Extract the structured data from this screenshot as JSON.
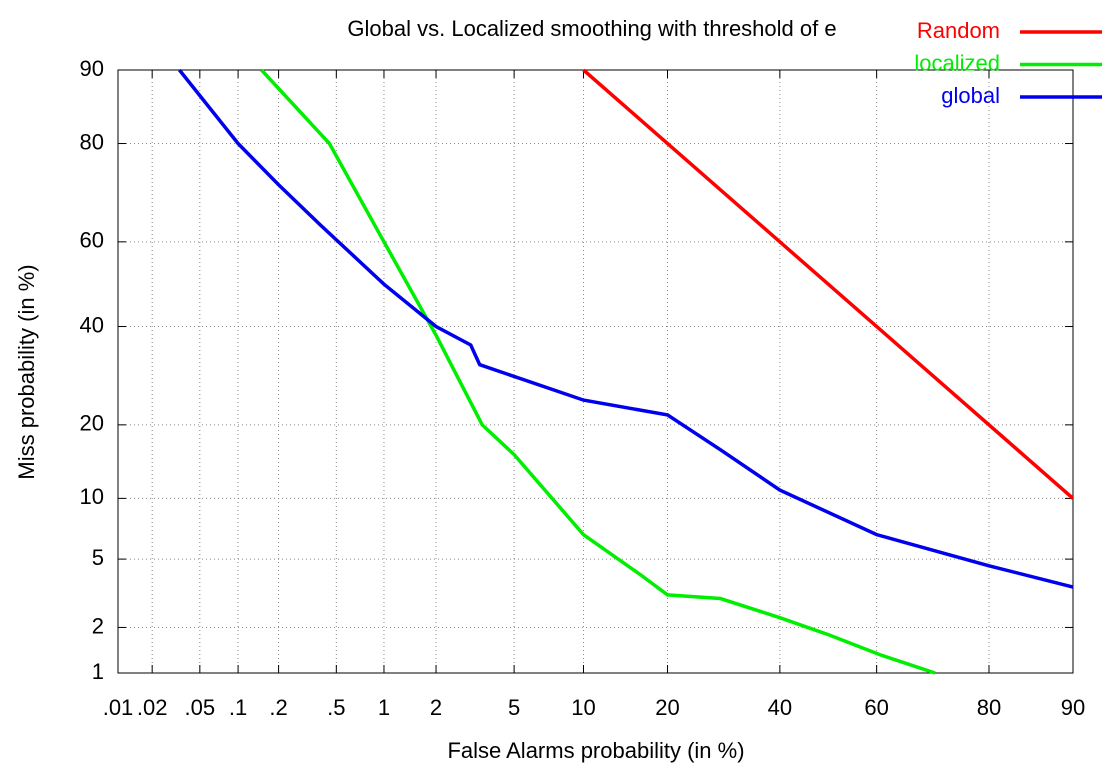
{
  "chart_data": {
    "type": "line",
    "title": "Global vs. Localized smoothing with threshold of e",
    "x_label": "False Alarms probability (in %)",
    "y_label": "Miss probability (in %)",
    "scale": "probit",
    "grid": true,
    "legend": "top-right",
    "xlim": [
      0.01,
      90
    ],
    "ylim": [
      1,
      90
    ],
    "xticks": [
      {
        "value": 0.01,
        "label": ".01"
      },
      {
        "value": 0.02,
        "label": ".02"
      },
      {
        "value": 0.05,
        "label": ".05"
      },
      {
        "value": 0.1,
        "label": ".1"
      },
      {
        "value": 0.2,
        "label": ".2"
      },
      {
        "value": 0.5,
        "label": ".5"
      },
      1,
      2,
      5,
      10,
      20,
      40,
      60,
      80,
      90
    ],
    "yticks": [
      1,
      2,
      5,
      10,
      20,
      40,
      60,
      80,
      90
    ],
    "series": [
      {
        "name": "Random",
        "color": "#ff0000",
        "x": [
          10,
          90
        ],
        "values": [
          90,
          10
        ]
      },
      {
        "name": "localized",
        "color": "#00ee00",
        "x": [
          0.15,
          0.45,
          1,
          2,
          3.5,
          5,
          10,
          16.3,
          20,
          28.6,
          40,
          50,
          60.7,
          71.2
        ],
        "values": [
          90,
          80,
          60,
          38,
          20,
          15.4,
          6.7,
          4.1,
          3.15,
          3.0,
          2.3,
          1.8,
          1.33,
          1
        ]
      },
      {
        "name": "global",
        "color": "#0000ee",
        "x": [
          0.034,
          0.1,
          0.2,
          0.39,
          1,
          2,
          3.06,
          3.4,
          10,
          20,
          28.6,
          40,
          60,
          80,
          90
        ],
        "values": [
          90,
          80,
          72.4,
          63.9,
          50,
          40,
          35.8,
          31.5,
          24.4,
          21.7,
          16.1,
          10.9,
          6.7,
          4.6,
          3.5
        ]
      }
    ]
  }
}
